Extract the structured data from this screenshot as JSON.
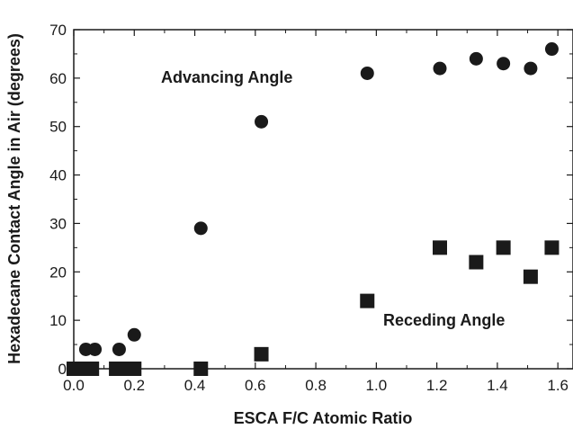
{
  "chart_data": {
    "type": "scatter",
    "xlabel": "ESCA F/C Atomic Ratio",
    "ylabel": "Hexadecane Contact Angle in Air (degrees)",
    "xlim": [
      0.0,
      1.65
    ],
    "ylim": [
      0,
      70
    ],
    "xticks": [
      "0.0",
      "0.2",
      "0.4",
      "0.6",
      "0.8",
      "1.0",
      "1.2",
      "1.4",
      "1.6"
    ],
    "yticks": [
      "0",
      "10",
      "20",
      "30",
      "40",
      "50",
      "60",
      "70"
    ],
    "grid": false,
    "annotations": [
      {
        "text": "Advancing Angle",
        "series": "advancing"
      },
      {
        "text": "Receding Angle",
        "series": "receding"
      }
    ],
    "series": [
      {
        "key": "advancing",
        "marker": "circle",
        "color": "#1a1a1a",
        "x": [
          0.0,
          0.04,
          0.07,
          0.15,
          0.2,
          0.42,
          0.62,
          0.97,
          1.21,
          1.33,
          1.42,
          1.51,
          1.58
        ],
        "y": [
          0,
          4,
          4,
          4,
          7,
          29,
          51,
          61,
          62,
          64,
          63,
          62,
          66
        ]
      },
      {
        "key": "receding",
        "marker": "square",
        "color": "#1a1a1a",
        "x": [
          0.0,
          0.03,
          0.06,
          0.14,
          0.18,
          0.2,
          0.42,
          0.62,
          0.97,
          1.21,
          1.33,
          1.42,
          1.51,
          1.58
        ],
        "y": [
          0,
          0,
          0,
          0,
          0,
          0,
          0,
          3,
          14,
          25,
          22,
          25,
          19,
          25
        ]
      }
    ]
  }
}
